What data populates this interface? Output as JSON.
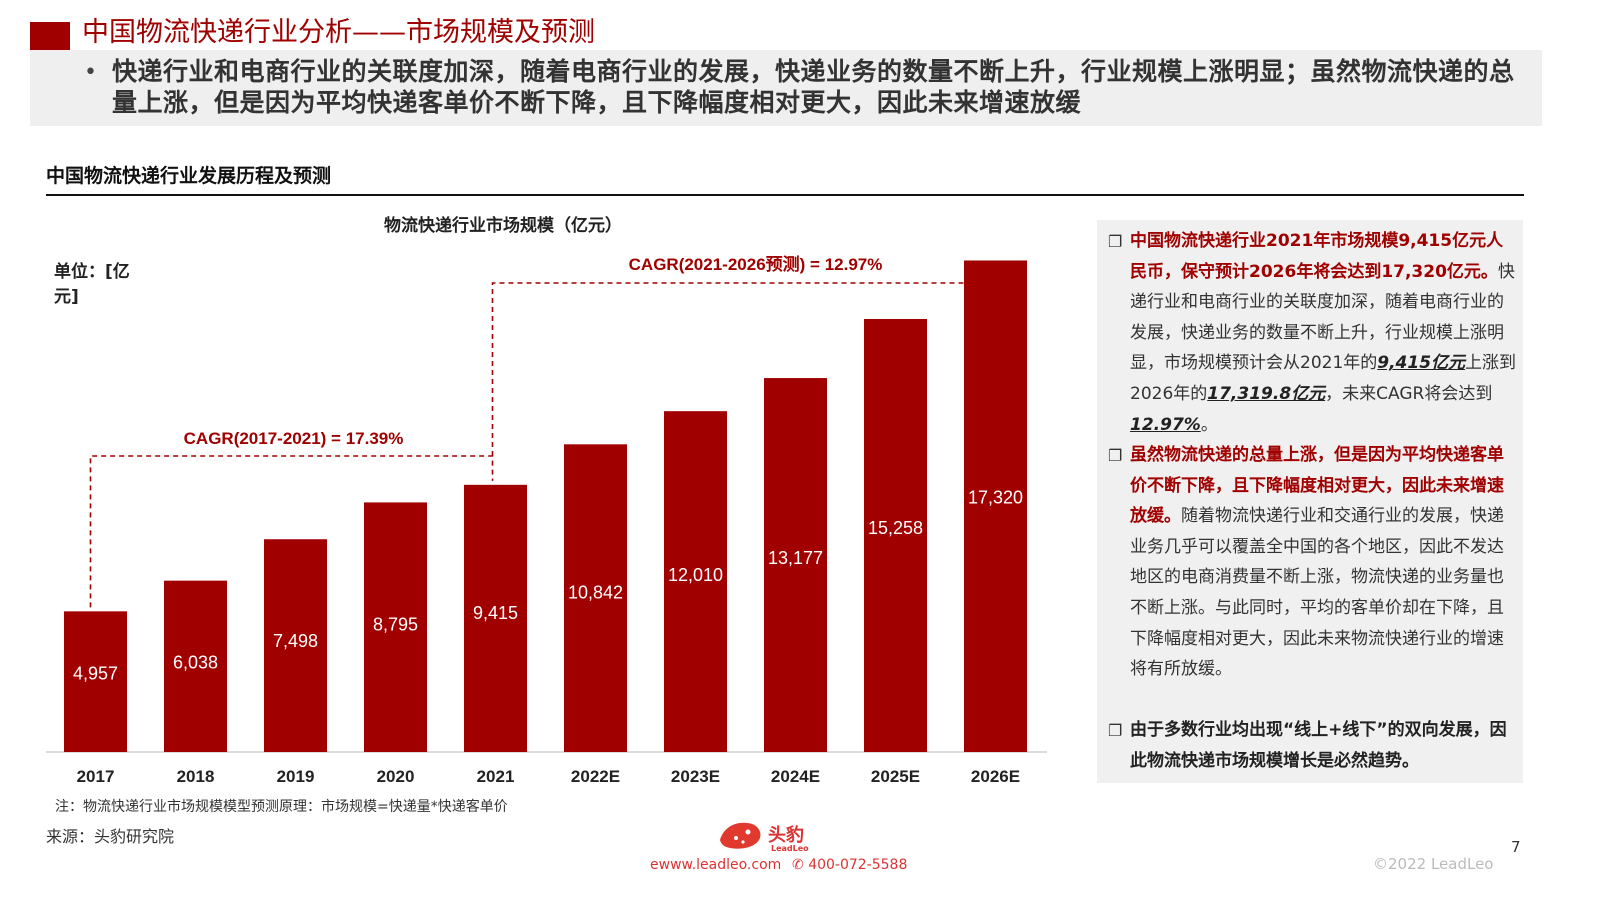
{
  "header": {
    "title": "中国物流快递行业分析——市场规模及预测",
    "bullet": "快递行业和电商行业的关联度加深，随着电商行业的发展，快递业务的数量不断上升，行业规模上涨明显；虽然物流快递的总量上涨，但是因为平均快递客单价不断下降，且下降幅度相对更大，因此未来增速放缓"
  },
  "section_title": "中国物流快递行业发展历程及预测",
  "unit_label": "单位：[亿元]",
  "note": "注：物流快递行业市场规模模型预测原理：市场规模=快递量*快递客单价",
  "source": "来源：头豹研究院",
  "colors": {
    "brand_red": "#a00000",
    "panel_bg": "#f0f0f0"
  },
  "chart_data": {
    "type": "bar",
    "title": "物流快递行业市场规模（亿元）",
    "categories": [
      "2017",
      "2018",
      "2019",
      "2020",
      "2021",
      "2022E",
      "2023E",
      "2024E",
      "2025E",
      "2026E"
    ],
    "values": [
      4957,
      6038,
      7498,
      8795,
      9415,
      10842,
      12010,
      13177,
      15258,
      17320
    ],
    "value_labels": [
      "4,957",
      "6,038",
      "7,498",
      "8,795",
      "9,415",
      "10,842",
      "12,010",
      "13,177",
      "15,258",
      "17,320"
    ],
    "ylim": [
      0,
      18500
    ],
    "bar_color": "#a00000",
    "grid": false,
    "annotations": [
      {
        "text": "CAGR(2017-2021) = 17.39%",
        "from": "2017",
        "to": "2021"
      },
      {
        "text": "CAGR(2021-2026预测) = 12.97%",
        "from": "2021",
        "to": "2026E"
      }
    ]
  },
  "side_panel": {
    "item1": {
      "highlight": "中国物流快递行业2021年市场规模9,415亿元人民币，保守预计2026年将会达到17,320亿元。",
      "text_a": "快递行业和电商行业的关联度加深，随着电商行业的发展，快递业务的数量不断上升，行业规模上涨明显，市场规模预计会从2021年的",
      "em1": "9,415亿元",
      "text_b": "上涨到2026年的",
      "em2": "17,319.8亿元",
      "text_c": "，未来CAGR将会达到",
      "em3": "12.97%",
      "text_d": "。"
    },
    "item2": {
      "highlight": "虽然物流快递的总量上涨，但是因为平均快递客单价不断下降，且下降幅度相对更大，因此未来增速放缓。",
      "text": "随着物流快递行业和交通行业的发展，快递业务几乎可以覆盖全中国的各个地区，因此不发达地区的电商消费量不断上涨，物流快递的业务量也不断上涨。与此同时，平均的客单价却在下降，且下降幅度相对更大，因此未来物流快递行业的增速将有所放缓。"
    },
    "item3": {
      "text": "由于多数行业均出现“线上+线下”的双向发展，因此物流快递市场规模增长是必然趋势。"
    }
  },
  "footer": {
    "logo_text": "头豹",
    "logo_sub": "LeadLeo",
    "website": "www.leadleo.com",
    "phone": "400-072-5588",
    "page": "7",
    "copyright": "©2022 LeadLeo"
  }
}
